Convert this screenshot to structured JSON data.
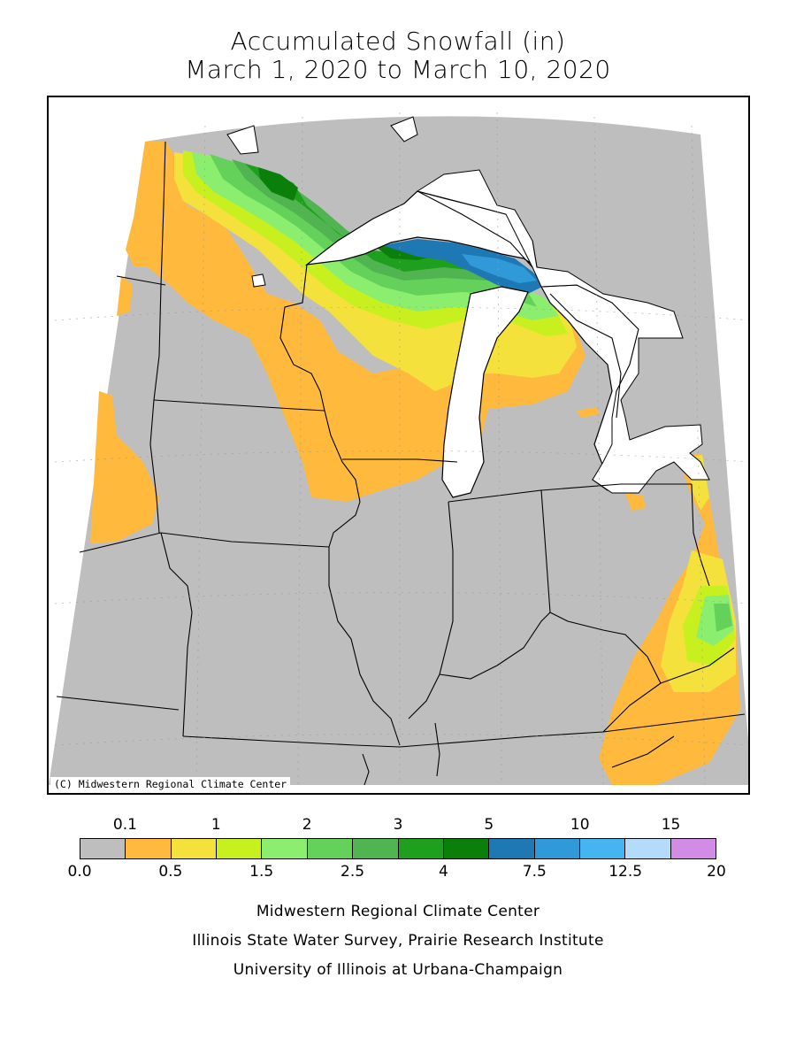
{
  "title_line1": "Accumulated Snowfall (in)",
  "title_line2": "March 1, 2020 to March 10, 2020",
  "copyright": "(C) Midwestern Regional Climate Center",
  "legend": {
    "colors": [
      "#bebebe",
      "#ffb93c",
      "#f5e13c",
      "#c8f01e",
      "#8cee6e",
      "#64d25a",
      "#50b450",
      "#1ea01e",
      "#0a800a",
      "#1e78b4",
      "#309ad8",
      "#46b4f0",
      "#b4dcfa",
      "#d28ce6"
    ],
    "top_labels": [
      "0.1",
      "1",
      "2",
      "3",
      "5",
      "10",
      "15"
    ],
    "bottom_labels": [
      "0.0",
      "0.5",
      "1.5",
      "2.5",
      "4",
      "7.5",
      "12.5",
      "20"
    ]
  },
  "footer": {
    "line1": "Midwestern Regional Climate Center",
    "line2": "Illinois State Water Survey, Prairie Research Institute",
    "line3": "University of Illinois at Urbana-Champaign"
  }
}
